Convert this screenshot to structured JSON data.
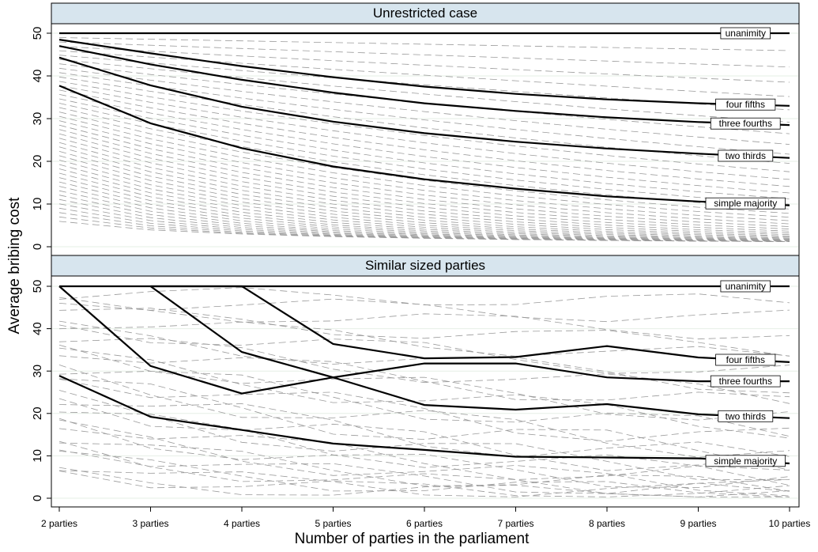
{
  "chart_data": {
    "type": "line",
    "ylabel": "Average bribing cost",
    "xlabel": "Number of parties in the parliament",
    "categories": [
      "2 parties",
      "3 parties",
      "4 parties",
      "5 parties",
      "6 parties",
      "7 parties",
      "8 parties",
      "9 parties",
      "10 parties"
    ],
    "ylim": [
      0,
      50
    ],
    "yticks": [
      0,
      10,
      20,
      30,
      40,
      50
    ],
    "grid": true,
    "panels": [
      {
        "title": "Unrestricted case",
        "series": [
          {
            "name": "unanimity",
            "values": [
              50,
              50,
              50,
              50,
              50,
              50,
              50,
              50,
              50
            ]
          },
          {
            "name": "four fifths",
            "values": [
              48.5,
              45.3,
              42.3,
              39.7,
              37.5,
              35.8,
              34.5,
              33.6,
              33.0
            ]
          },
          {
            "name": "three fourths",
            "values": [
              47.0,
              42.7,
              39.1,
              36.1,
              33.6,
              31.8,
              30.3,
              29.2,
              28.5
            ]
          },
          {
            "name": "two thirds",
            "values": [
              44.3,
              37.8,
              32.8,
              29.3,
              26.6,
              24.6,
              23.0,
              21.8,
              20.8
            ]
          },
          {
            "name": "simple majority",
            "values": [
              37.7,
              28.9,
              23.1,
              18.8,
              15.8,
              13.6,
              11.8,
              10.6,
              9.7
            ]
          }
        ]
      },
      {
        "title": "Similar sized parties",
        "series": [
          {
            "name": "unanimity",
            "values": [
              50,
              50,
              50,
              50,
              50,
              50,
              50,
              50,
              50
            ]
          },
          {
            "name": "four fifths",
            "values": [
              null,
              50,
              50,
              36.4,
              33.0,
              33.3,
              35.9,
              33.2,
              32.1
            ]
          },
          {
            "name": "three fourths",
            "values": [
              null,
              50,
              34.5,
              28.5,
              31.8,
              31.8,
              28.5,
              27.6,
              27.6
            ]
          },
          {
            "name": "two thirds",
            "values": [
              50,
              31.2,
              24.7,
              28.5,
              22.0,
              20.9,
              22.2,
              19.8,
              18.9
            ]
          },
          {
            "name": "simple majority",
            "values": [
              28.9,
              19.2,
              16.1,
              12.9,
              11.4,
              9.8,
              9.6,
              9.4,
              8.2
            ]
          }
        ]
      }
    ]
  }
}
